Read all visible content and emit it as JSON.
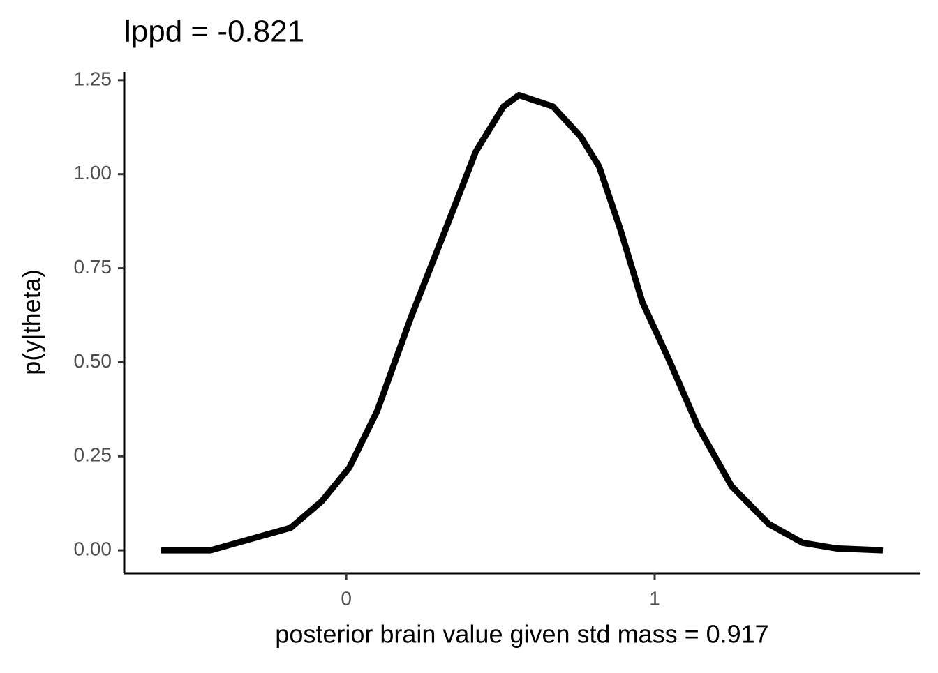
{
  "chart_data": {
    "type": "line",
    "title": "lppd = -0.821",
    "x_label": "posterior brain value given std mass = 0.917",
    "y_label": "p(y|theta)",
    "series": [
      {
        "color": "#000000",
        "x": [
          -0.6,
          -0.44,
          -0.31,
          -0.18,
          -0.08,
          0.01,
          0.1,
          0.21,
          0.33,
          0.42,
          0.51,
          0.56,
          0.67,
          0.76,
          0.82,
          0.89,
          0.96,
          1.05,
          1.14,
          1.25,
          1.37,
          1.48,
          1.59,
          1.74
        ],
        "values": [
          0.0,
          0.0,
          0.03,
          0.06,
          0.13,
          0.22,
          0.37,
          0.62,
          0.87,
          1.06,
          1.18,
          1.21,
          1.18,
          1.1,
          1.02,
          0.85,
          0.66,
          0.5,
          0.33,
          0.17,
          0.07,
          0.02,
          0.005,
          0.0
        ]
      }
    ],
    "xlim": [
      -0.72,
      1.86
    ],
    "ylim": [
      -0.061,
      1.272
    ],
    "xticks": [
      0,
      1
    ],
    "yticks": [
      {
        "value": 0,
        "label": "0.00"
      },
      {
        "value": 0.25,
        "label": "0.25"
      },
      {
        "value": 0.5,
        "label": "0.50"
      },
      {
        "value": 0.75,
        "label": "0.75"
      },
      {
        "value": 1,
        "label": "1.00"
      },
      {
        "value": 1.25,
        "label": "1.25"
      }
    ]
  }
}
